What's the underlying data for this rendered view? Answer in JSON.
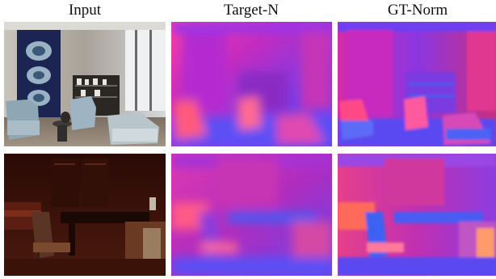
{
  "columns": [
    {
      "label": "Input"
    },
    {
      "label": "Target-N"
    },
    {
      "label": "GT-Norm"
    }
  ],
  "rows": [
    {
      "scene": "Bright showroom with blue wall hanging, armchairs and shelving"
    },
    {
      "scene": "Dark wood-panelled room with chair, table and sofa"
    }
  ],
  "colors": {
    "normal_magenta": "#c82cbf",
    "normal_blue": "#5a4af0",
    "normal_pink": "#ff5a8a",
    "normal_violet": "#8a3cf0",
    "input1_wall": "#b8b2a8",
    "input1_hanging": "#1c2452",
    "input2_wood": "#3a1208"
  }
}
